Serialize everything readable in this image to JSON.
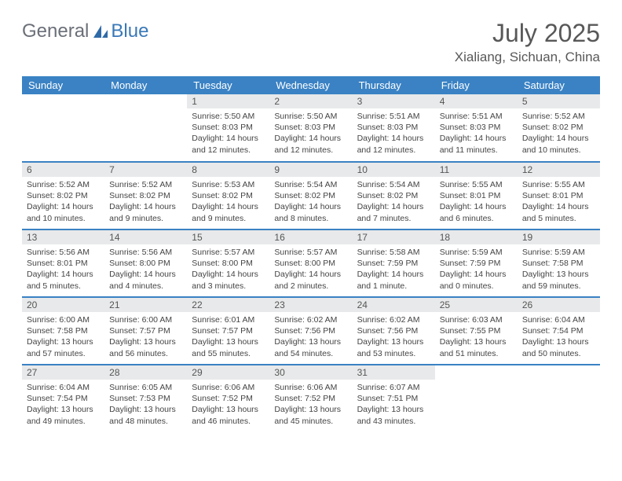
{
  "logo": {
    "text1": "General",
    "text2": "Blue"
  },
  "title": {
    "month": "July 2025",
    "location": "Xialiang, Sichuan, China"
  },
  "colors": {
    "header_bg": "#3a82c4",
    "header_text": "#ffffff",
    "daynum_bg": "#e8e9ea",
    "body_text": "#444444",
    "rule": "#3a82c4",
    "logo_gray": "#6b6f78",
    "logo_blue": "#3a78b8"
  },
  "weekdays": [
    "Sunday",
    "Monday",
    "Tuesday",
    "Wednesday",
    "Thursday",
    "Friday",
    "Saturday"
  ],
  "weeks": [
    [
      null,
      null,
      {
        "n": "1",
        "sr": "5:50 AM",
        "ss": "8:03 PM",
        "dl": "14 hours and 12 minutes."
      },
      {
        "n": "2",
        "sr": "5:50 AM",
        "ss": "8:03 PM",
        "dl": "14 hours and 12 minutes."
      },
      {
        "n": "3",
        "sr": "5:51 AM",
        "ss": "8:03 PM",
        "dl": "14 hours and 12 minutes."
      },
      {
        "n": "4",
        "sr": "5:51 AM",
        "ss": "8:03 PM",
        "dl": "14 hours and 11 minutes."
      },
      {
        "n": "5",
        "sr": "5:52 AM",
        "ss": "8:02 PM",
        "dl": "14 hours and 10 minutes."
      }
    ],
    [
      {
        "n": "6",
        "sr": "5:52 AM",
        "ss": "8:02 PM",
        "dl": "14 hours and 10 minutes."
      },
      {
        "n": "7",
        "sr": "5:52 AM",
        "ss": "8:02 PM",
        "dl": "14 hours and 9 minutes."
      },
      {
        "n": "8",
        "sr": "5:53 AM",
        "ss": "8:02 PM",
        "dl": "14 hours and 9 minutes."
      },
      {
        "n": "9",
        "sr": "5:54 AM",
        "ss": "8:02 PM",
        "dl": "14 hours and 8 minutes."
      },
      {
        "n": "10",
        "sr": "5:54 AM",
        "ss": "8:02 PM",
        "dl": "14 hours and 7 minutes."
      },
      {
        "n": "11",
        "sr": "5:55 AM",
        "ss": "8:01 PM",
        "dl": "14 hours and 6 minutes."
      },
      {
        "n": "12",
        "sr": "5:55 AM",
        "ss": "8:01 PM",
        "dl": "14 hours and 5 minutes."
      }
    ],
    [
      {
        "n": "13",
        "sr": "5:56 AM",
        "ss": "8:01 PM",
        "dl": "14 hours and 5 minutes."
      },
      {
        "n": "14",
        "sr": "5:56 AM",
        "ss": "8:00 PM",
        "dl": "14 hours and 4 minutes."
      },
      {
        "n": "15",
        "sr": "5:57 AM",
        "ss": "8:00 PM",
        "dl": "14 hours and 3 minutes."
      },
      {
        "n": "16",
        "sr": "5:57 AM",
        "ss": "8:00 PM",
        "dl": "14 hours and 2 minutes."
      },
      {
        "n": "17",
        "sr": "5:58 AM",
        "ss": "7:59 PM",
        "dl": "14 hours and 1 minute."
      },
      {
        "n": "18",
        "sr": "5:59 AM",
        "ss": "7:59 PM",
        "dl": "14 hours and 0 minutes."
      },
      {
        "n": "19",
        "sr": "5:59 AM",
        "ss": "7:58 PM",
        "dl": "13 hours and 59 minutes."
      }
    ],
    [
      {
        "n": "20",
        "sr": "6:00 AM",
        "ss": "7:58 PM",
        "dl": "13 hours and 57 minutes."
      },
      {
        "n": "21",
        "sr": "6:00 AM",
        "ss": "7:57 PM",
        "dl": "13 hours and 56 minutes."
      },
      {
        "n": "22",
        "sr": "6:01 AM",
        "ss": "7:57 PM",
        "dl": "13 hours and 55 minutes."
      },
      {
        "n": "23",
        "sr": "6:02 AM",
        "ss": "7:56 PM",
        "dl": "13 hours and 54 minutes."
      },
      {
        "n": "24",
        "sr": "6:02 AM",
        "ss": "7:56 PM",
        "dl": "13 hours and 53 minutes."
      },
      {
        "n": "25",
        "sr": "6:03 AM",
        "ss": "7:55 PM",
        "dl": "13 hours and 51 minutes."
      },
      {
        "n": "26",
        "sr": "6:04 AM",
        "ss": "7:54 PM",
        "dl": "13 hours and 50 minutes."
      }
    ],
    [
      {
        "n": "27",
        "sr": "6:04 AM",
        "ss": "7:54 PM",
        "dl": "13 hours and 49 minutes."
      },
      {
        "n": "28",
        "sr": "6:05 AM",
        "ss": "7:53 PM",
        "dl": "13 hours and 48 minutes."
      },
      {
        "n": "29",
        "sr": "6:06 AM",
        "ss": "7:52 PM",
        "dl": "13 hours and 46 minutes."
      },
      {
        "n": "30",
        "sr": "6:06 AM",
        "ss": "7:52 PM",
        "dl": "13 hours and 45 minutes."
      },
      {
        "n": "31",
        "sr": "6:07 AM",
        "ss": "7:51 PM",
        "dl": "13 hours and 43 minutes."
      },
      null,
      null
    ]
  ],
  "labels": {
    "sunrise": "Sunrise:",
    "sunset": "Sunset:",
    "daylight": "Daylight:"
  }
}
